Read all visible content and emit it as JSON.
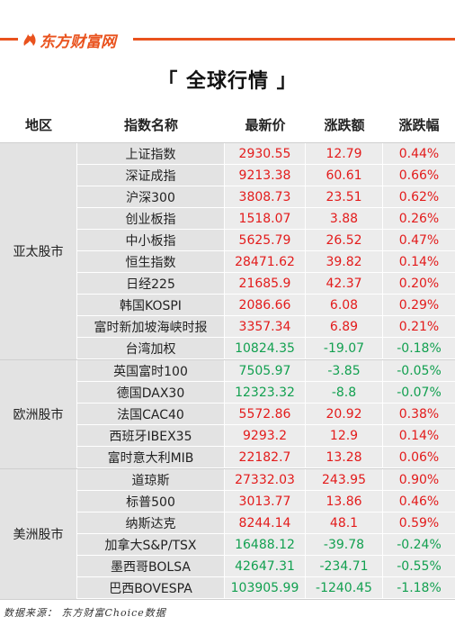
{
  "brand": {
    "name": "东方财富网",
    "accent": "#e9521d"
  },
  "title": "「 全球行情 」",
  "headers": [
    "地区",
    "指数名称",
    "最新价",
    "涨跌额",
    "涨跌幅"
  ],
  "colors": {
    "up": "#e31b1b",
    "down": "#12a050"
  },
  "groups": [
    {
      "region": "亚太股市",
      "rows": [
        {
          "name": "上证指数",
          "price": "2930.55",
          "change": "12.79",
          "pct": "0.44%",
          "dir": "up"
        },
        {
          "name": "深证成指",
          "price": "9213.38",
          "change": "60.61",
          "pct": "0.66%",
          "dir": "up"
        },
        {
          "name": "沪深300",
          "price": "3808.73",
          "change": "23.51",
          "pct": "0.62%",
          "dir": "up"
        },
        {
          "name": "创业板指",
          "price": "1518.07",
          "change": "3.88",
          "pct": "0.26%",
          "dir": "up"
        },
        {
          "name": "中小板指",
          "price": "5625.79",
          "change": "26.52",
          "pct": "0.47%",
          "dir": "up"
        },
        {
          "name": "恒生指数",
          "price": "28471.62",
          "change": "39.82",
          "pct": "0.14%",
          "dir": "up"
        },
        {
          "name": "日经225",
          "price": "21685.9",
          "change": "42.37",
          "pct": "0.20%",
          "dir": "up"
        },
        {
          "name": "韩国KOSPI",
          "price": "2086.66",
          "change": "6.08",
          "pct": "0.29%",
          "dir": "up"
        },
        {
          "name": "富时新加坡海峡时报",
          "price": "3357.34",
          "change": "6.89",
          "pct": "0.21%",
          "dir": "up"
        },
        {
          "name": "台湾加权",
          "price": "10824.35",
          "change": "-19.07",
          "pct": "-0.18%",
          "dir": "down"
        }
      ]
    },
    {
      "region": "欧洲股市",
      "rows": [
        {
          "name": "英国富时100",
          "price": "7505.97",
          "change": "-3.85",
          "pct": "-0.05%",
          "dir": "down"
        },
        {
          "name": "德国DAX30",
          "price": "12323.32",
          "change": "-8.8",
          "pct": "-0.07%",
          "dir": "down"
        },
        {
          "name": "法国CAC40",
          "price": "5572.86",
          "change": "20.92",
          "pct": "0.38%",
          "dir": "up"
        },
        {
          "name": "西班牙IBEX35",
          "price": "9293.2",
          "change": "12.9",
          "pct": "0.14%",
          "dir": "up"
        },
        {
          "name": "富时意大利MIB",
          "price": "22182.7",
          "change": "13.28",
          "pct": "0.06%",
          "dir": "up"
        }
      ]
    },
    {
      "region": "美洲股市",
      "rows": [
        {
          "name": "道琼斯",
          "price": "27332.03",
          "change": "243.95",
          "pct": "0.90%",
          "dir": "up"
        },
        {
          "name": "标普500",
          "price": "3013.77",
          "change": "13.86",
          "pct": "0.46%",
          "dir": "up"
        },
        {
          "name": "纳斯达克",
          "price": "8244.14",
          "change": "48.1",
          "pct": "0.59%",
          "dir": "up"
        },
        {
          "name": "加拿大S&P/TSX",
          "price": "16488.12",
          "change": "-39.78",
          "pct": "-0.24%",
          "dir": "down"
        },
        {
          "name": "墨西哥BOLSA",
          "price": "42647.31",
          "change": "-234.71",
          "pct": "-0.55%",
          "dir": "down"
        },
        {
          "name": "巴西BOVESPA",
          "price": "103905.99",
          "change": "-1240.45",
          "pct": "-1.18%",
          "dir": "down"
        }
      ]
    }
  ],
  "source": "数据来源：  东方财富Choice数据"
}
